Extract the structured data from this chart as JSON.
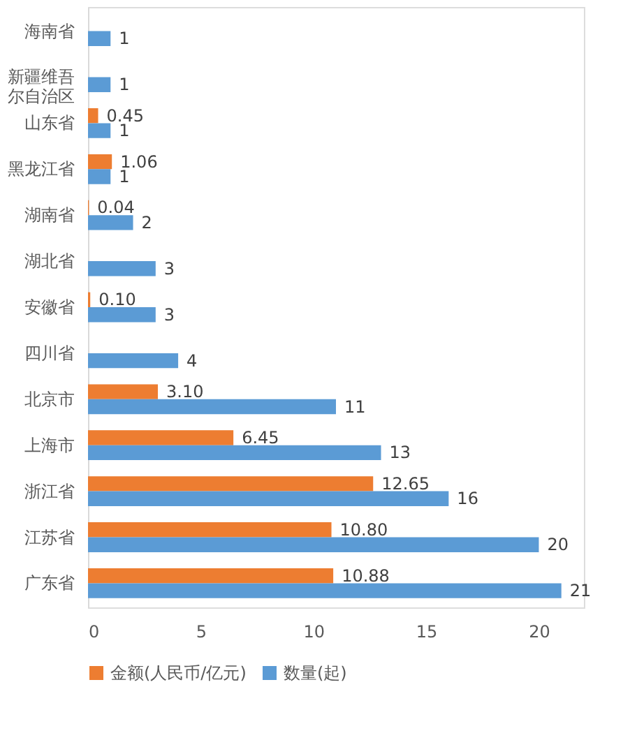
{
  "chart_data": {
    "type": "bar",
    "orientation": "horizontal",
    "categories": [
      "海南省",
      "新疆维吾尔自治区",
      "山东省",
      "黑龙江省",
      "湖南省",
      "湖北省",
      "安徽省",
      "四川省",
      "北京市",
      "上海市",
      "浙江省",
      "江苏省",
      "广东省"
    ],
    "series": [
      {
        "name": "金额(人民币/亿元)",
        "color": "#ed7d31",
        "values": [
          null,
          null,
          0.45,
          1.06,
          0.04,
          null,
          0.1,
          null,
          3.1,
          6.45,
          12.65,
          10.8,
          10.88
        ],
        "value_labels": [
          null,
          null,
          "0.45",
          "1.06",
          "0.04",
          null,
          "0.10",
          null,
          "3.10",
          "6.45",
          "12.65",
          "10.80",
          "10.88"
        ]
      },
      {
        "name": "数量(起)",
        "color": "#5b9bd5",
        "values": [
          1,
          1,
          1,
          1,
          2,
          3,
          3,
          4,
          11,
          13,
          16,
          20,
          21
        ],
        "value_labels": [
          "1",
          "1",
          "1",
          "1",
          "2",
          "3",
          "3",
          "4",
          "11",
          "13",
          "16",
          "20",
          "21"
        ]
      }
    ],
    "xlim": [
      0,
      22
    ],
    "xticks": [
      0,
      5,
      10,
      15,
      20
    ],
    "grid": false,
    "legend": "bottom"
  }
}
